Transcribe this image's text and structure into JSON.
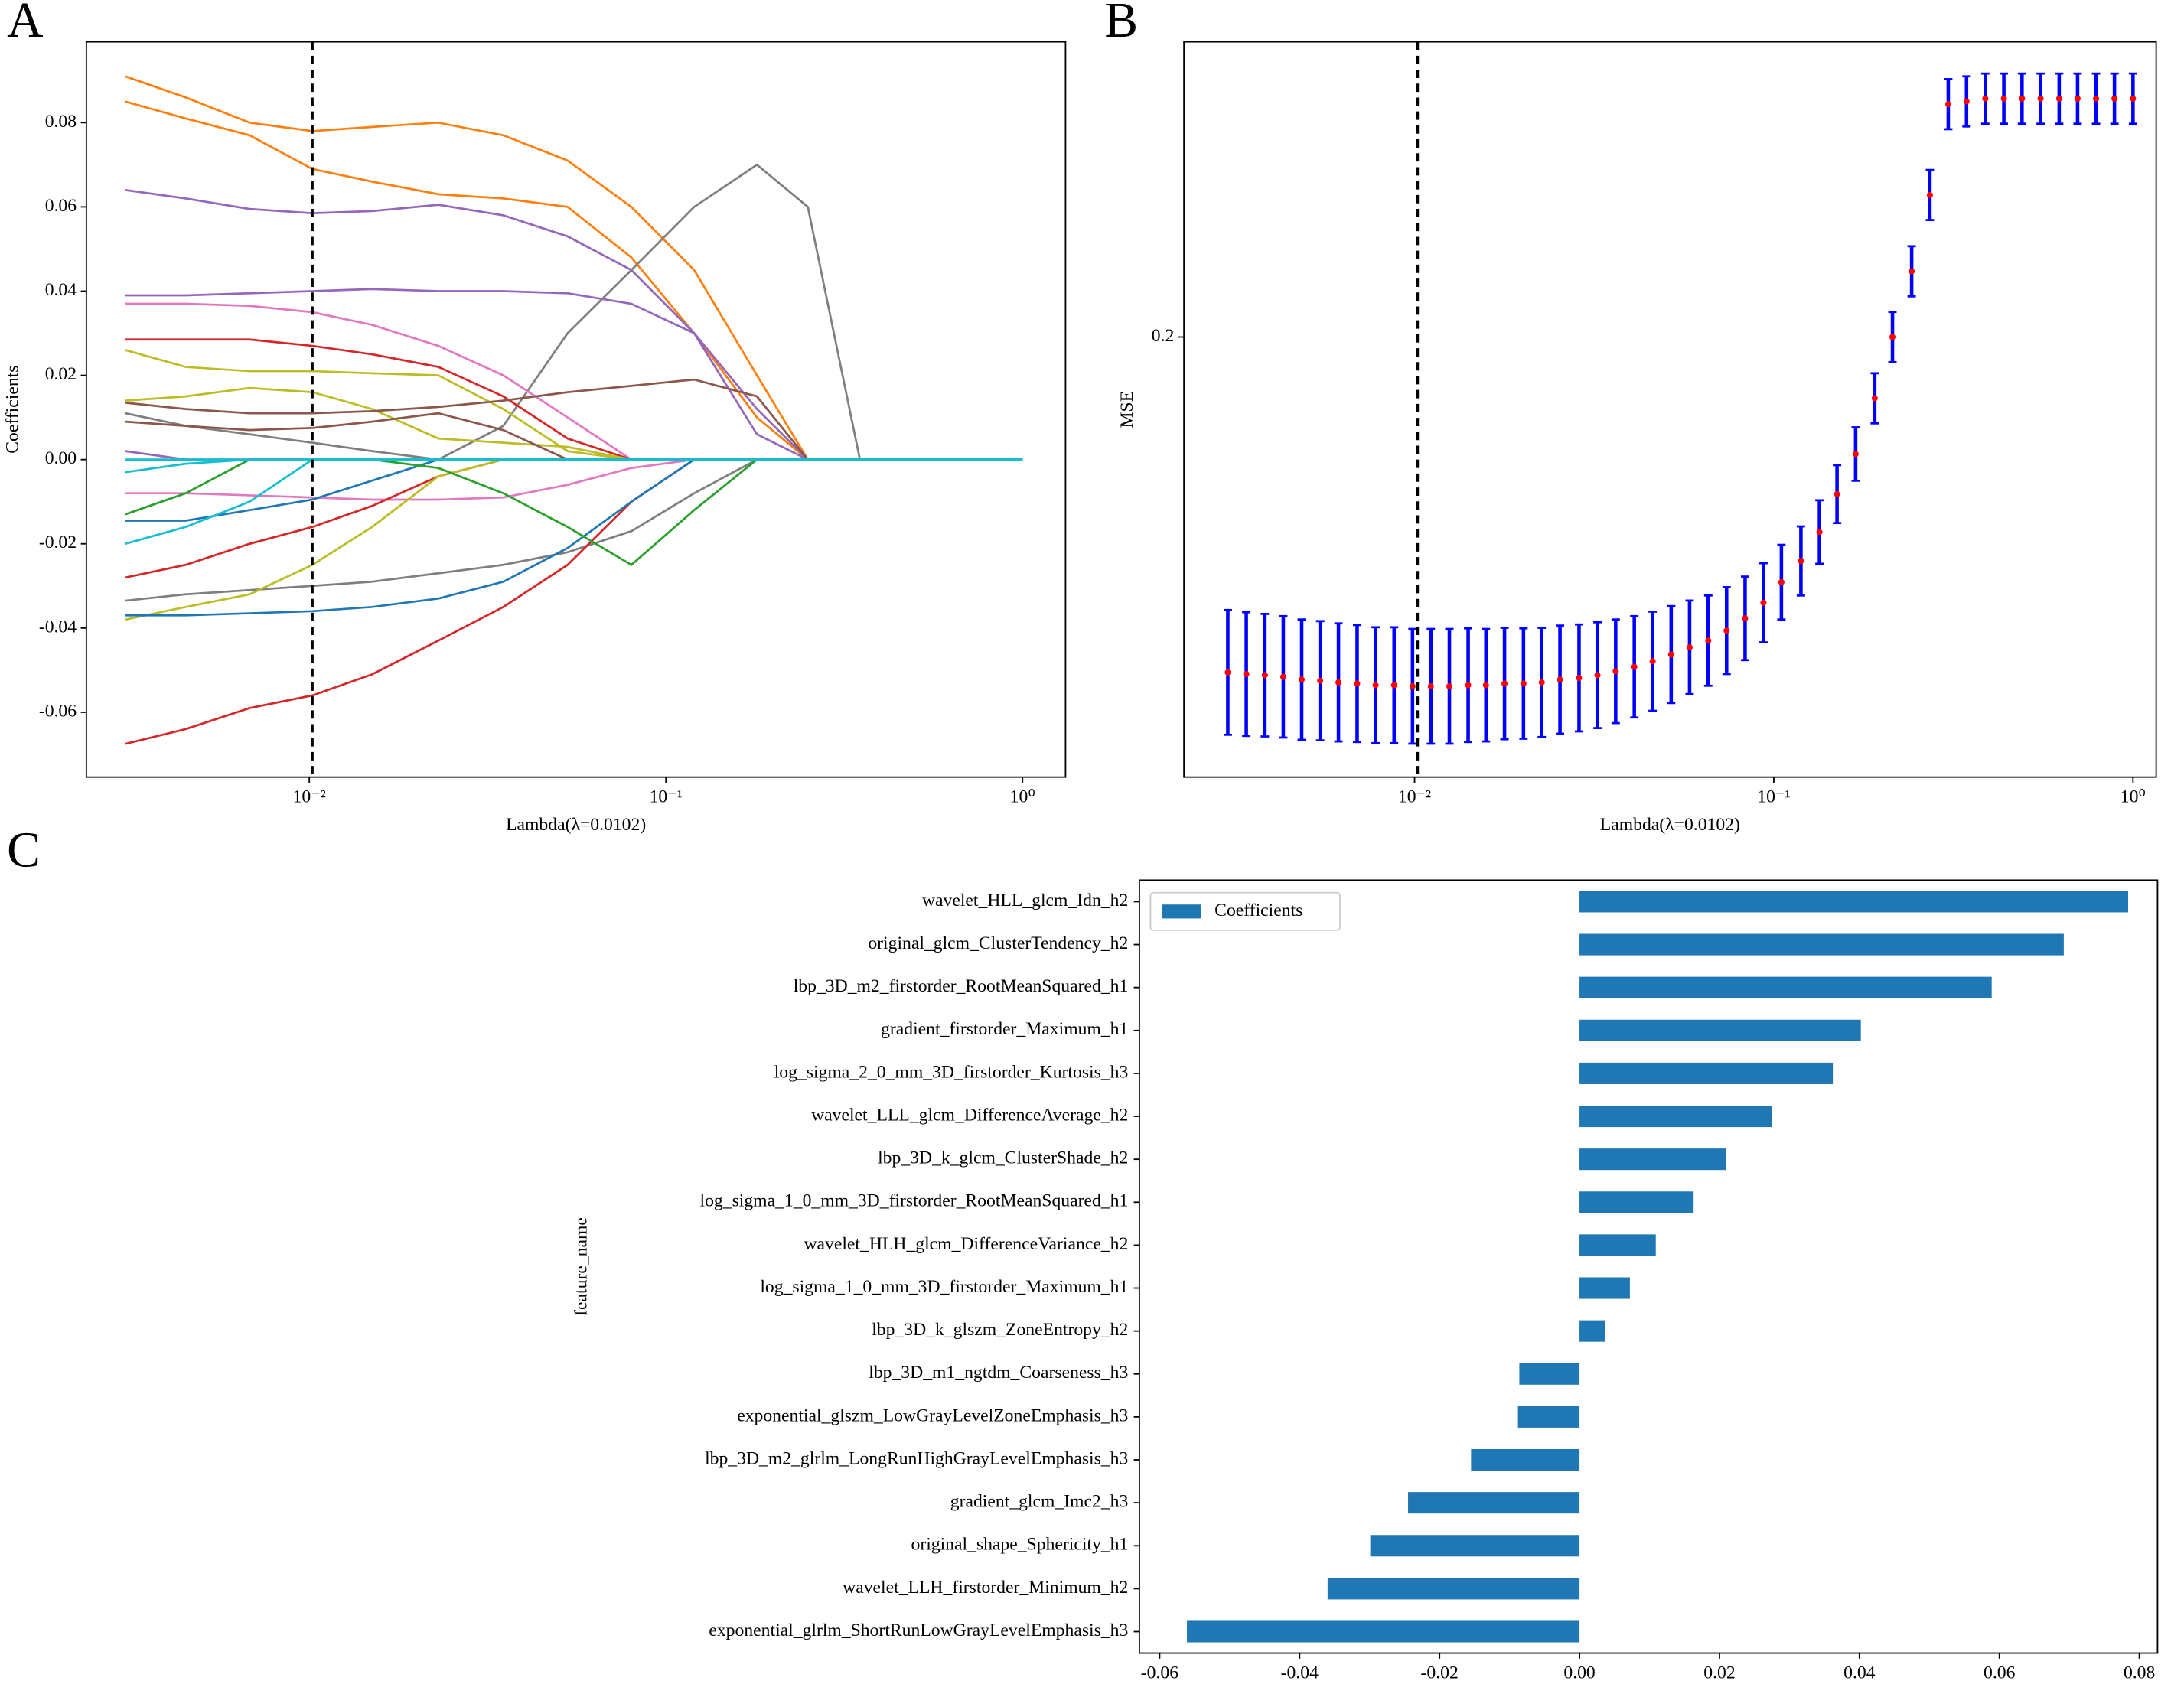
{
  "chart_data": [
    {
      "type": "line",
      "panel_label": "A",
      "xlabel": "Lambda(λ=0.0102)",
      "ylabel": "Coefficients",
      "xscale": "log",
      "xlim": [
        0.00237,
        1.32
      ],
      "ylim": [
        -0.0754,
        0.0992
      ],
      "xticks": [
        {
          "value": 0.01,
          "label": "10⁻²"
        },
        {
          "value": 0.1,
          "label": "10⁻¹"
        },
        {
          "value": 1,
          "label": "10⁰"
        }
      ],
      "yticks": [
        -0.06,
        -0.04,
        -0.02,
        {
          "value": 0,
          "label": "0.00"
        },
        0.02,
        0.04,
        0.06,
        0.08
      ],
      "vline": 0.0102,
      "x": [
        0.00305,
        0.0045,
        0.0068,
        0.0102,
        0.015,
        0.023,
        0.035,
        0.053,
        0.08,
        0.12,
        0.18,
        0.25,
        0.35,
        0.5,
        0.7,
        1.0
      ],
      "series": [
        {
          "color": "#ff7f0e",
          "values": [
            0.091,
            0.086,
            0.08,
            0.078,
            0.079,
            0.08,
            0.077,
            0.071,
            0.06,
            0.045,
            0.02,
            0,
            0,
            0,
            0,
            0
          ]
        },
        {
          "color": "#ff7f0e",
          "values": [
            0.085,
            0.081,
            0.077,
            0.069,
            0.066,
            0.063,
            0.062,
            0.06,
            0.048,
            0.03,
            0.01,
            0,
            0,
            0,
            0,
            0
          ]
        },
        {
          "color": "#9467bd",
          "values": [
            0.064,
            0.062,
            0.0595,
            0.0585,
            0.059,
            0.0605,
            0.058,
            0.053,
            0.045,
            0.03,
            0.006,
            0,
            0,
            0,
            0,
            0
          ]
        },
        {
          "color": "#9467bd",
          "values": [
            0.039,
            0.039,
            0.0395,
            0.04,
            0.0405,
            0.04,
            0.04,
            0.0395,
            0.037,
            0.03,
            0.012,
            0,
            0,
            0,
            0,
            0
          ]
        },
        {
          "color": "#7f7f7f",
          "values": [
            0.011,
            0.008,
            0.006,
            0.004,
            0.002,
            0,
            0.008,
            0.03,
            0.045,
            0.06,
            0.07,
            0.06,
            0,
            0,
            0,
            0
          ]
        },
        {
          "color": "#7f7f7f",
          "values": [
            -0.0335,
            -0.032,
            -0.031,
            -0.03,
            -0.029,
            -0.027,
            -0.025,
            -0.022,
            -0.017,
            -0.008,
            0,
            0,
            0,
            0,
            0,
            0
          ]
        },
        {
          "color": "#e377c2",
          "values": [
            0.037,
            0.037,
            0.0365,
            0.035,
            0.032,
            0.027,
            0.02,
            0.01,
            0,
            0,
            0,
            0,
            0,
            0,
            0,
            0
          ]
        },
        {
          "color": "#e377c2",
          "values": [
            -0.008,
            -0.008,
            -0.0085,
            -0.009,
            -0.0095,
            -0.0095,
            -0.009,
            -0.006,
            -0.002,
            0,
            0,
            0,
            0,
            0,
            0,
            0
          ]
        },
        {
          "color": "#d62728",
          "values": [
            0.0285,
            0.0285,
            0.0285,
            0.027,
            0.025,
            0.022,
            0.015,
            0.005,
            0,
            0,
            0,
            0,
            0,
            0,
            0,
            0
          ]
        },
        {
          "color": "#d62728",
          "values": [
            -0.028,
            -0.025,
            -0.02,
            -0.016,
            -0.011,
            -0.004,
            0,
            0,
            0,
            0,
            0,
            0,
            0,
            0,
            0,
            0
          ]
        },
        {
          "color": "#d62728",
          "values": [
            -0.0675,
            -0.064,
            -0.059,
            -0.056,
            -0.051,
            -0.043,
            -0.035,
            -0.025,
            -0.01,
            0,
            0,
            0,
            0,
            0,
            0,
            0
          ]
        },
        {
          "color": "#bcbd22",
          "values": [
            0.026,
            0.022,
            0.021,
            0.021,
            0.0205,
            0.02,
            0.012,
            0.002,
            0,
            0,
            0,
            0,
            0,
            0,
            0,
            0
          ]
        },
        {
          "color": "#bcbd22",
          "values": [
            0.014,
            0.015,
            0.017,
            0.016,
            0.012,
            0.005,
            0.004,
            0.003,
            0,
            0,
            0,
            0,
            0,
            0,
            0,
            0
          ]
        },
        {
          "color": "#bcbd22",
          "values": [
            -0.038,
            -0.035,
            -0.032,
            -0.025,
            -0.016,
            -0.004,
            0,
            0,
            0,
            0,
            0,
            0,
            0,
            0,
            0,
            0
          ]
        },
        {
          "color": "#8c564b",
          "values": [
            0.0135,
            0.012,
            0.011,
            0.011,
            0.0115,
            0.0125,
            0.014,
            0.016,
            0.0175,
            0.019,
            0.015,
            0,
            0,
            0,
            0,
            0
          ]
        },
        {
          "color": "#8c564b",
          "values": [
            0.009,
            0.008,
            0.007,
            0.0075,
            0.009,
            0.011,
            0.007,
            0,
            0,
            0,
            0,
            0,
            0,
            0,
            0,
            0
          ]
        },
        {
          "color": "#1f77b4",
          "values": [
            -0.037,
            -0.037,
            -0.0365,
            -0.036,
            -0.035,
            -0.033,
            -0.029,
            -0.021,
            -0.01,
            0,
            0,
            0,
            0,
            0,
            0,
            0
          ]
        },
        {
          "color": "#1f77b4",
          "values": [
            -0.0145,
            -0.0145,
            -0.012,
            -0.0095,
            -0.005,
            0,
            0,
            0,
            0,
            0,
            0,
            0,
            0,
            0,
            0,
            0
          ]
        },
        {
          "color": "#2ca02c",
          "values": [
            -0.013,
            -0.008,
            0,
            0,
            0,
            -0.002,
            -0.008,
            -0.016,
            -0.025,
            -0.012,
            0,
            0,
            0,
            0,
            0,
            0
          ]
        },
        {
          "color": "#9467bd",
          "values": [
            0.002,
            0,
            0,
            0,
            0,
            0,
            0,
            0,
            0,
            0,
            0,
            0,
            0,
            0,
            0,
            0
          ]
        },
        {
          "color": "#17becf",
          "values": [
            -0.02,
            -0.016,
            -0.01,
            0,
            0,
            0,
            0,
            0,
            0,
            0,
            0,
            0,
            0,
            0,
            0,
            0
          ]
        },
        {
          "color": "#17becf",
          "values": [
            -0.003,
            -0.001,
            0,
            0,
            0,
            0,
            0,
            0,
            0,
            0,
            0,
            0,
            0,
            0,
            0,
            0
          ]
        },
        {
          "color": "#17becf",
          "values": [
            0,
            0,
            0,
            0,
            0,
            0,
            0,
            0,
            0,
            0,
            0,
            0,
            0,
            0,
            0,
            0
          ]
        }
      ]
    },
    {
      "type": "errorbar",
      "panel_label": "B",
      "xlabel": "Lambda(λ=0.0102)",
      "ylabel": "MSE",
      "xscale": "log",
      "xlim": [
        0.00228,
        1.16
      ],
      "ylim": [
        0.121,
        0.253
      ],
      "xticks": [
        {
          "value": 0.01,
          "label": "10⁻²"
        },
        {
          "value": 0.1,
          "label": "10⁻¹"
        },
        {
          "value": 1,
          "label": "10⁰"
        }
      ],
      "yticks": [
        0.2
      ],
      "vline": 0.0102,
      "color": "#ff0000",
      "ecolor": "#0000ff",
      "x": [
        0.00302,
        0.0034,
        0.00383,
        0.00431,
        0.00485,
        0.00546,
        0.00614,
        0.00692,
        0.00779,
        0.00877,
        0.00987,
        0.0111,
        0.0125,
        0.0141,
        0.0158,
        0.0178,
        0.0201,
        0.0226,
        0.0254,
        0.0287,
        0.0323,
        0.0363,
        0.0409,
        0.046,
        0.0518,
        0.0583,
        0.0657,
        0.0739,
        0.0832,
        0.0936,
        0.105,
        0.119,
        0.134,
        0.15,
        0.169,
        0.191,
        0.214,
        0.242,
        0.272,
        0.306,
        0.344,
        0.388,
        0.437,
        0.491,
        0.553,
        0.623,
        0.701,
        0.789,
        0.888,
        1.0
      ],
      "values": [
        0.1398,
        0.1395,
        0.1393,
        0.139,
        0.1385,
        0.1383,
        0.138,
        0.1378,
        0.1375,
        0.1375,
        0.1373,
        0.1373,
        0.1373,
        0.1375,
        0.1375,
        0.1378,
        0.1378,
        0.138,
        0.1385,
        0.1388,
        0.1393,
        0.14,
        0.1408,
        0.1418,
        0.143,
        0.1443,
        0.1455,
        0.1473,
        0.1495,
        0.1523,
        0.156,
        0.1598,
        0.165,
        0.1718,
        0.179,
        0.189,
        0.2,
        0.2118,
        0.2255,
        0.2418,
        0.2423,
        0.2428,
        0.2428,
        0.2428,
        0.2428,
        0.2428,
        0.2428,
        0.2428,
        0.2428,
        0.2428
      ],
      "errors": [
        0.0112,
        0.0111,
        0.011,
        0.0109,
        0.0108,
        0.0107,
        0.0106,
        0.0105,
        0.0104,
        0.0104,
        0.0103,
        0.0103,
        0.0103,
        0.0102,
        0.0101,
        0.01,
        0.0099,
        0.0098,
        0.0097,
        0.0096,
        0.0095,
        0.0093,
        0.0091,
        0.0089,
        0.0087,
        0.0084,
        0.0081,
        0.0078,
        0.0075,
        0.0071,
        0.0067,
        0.0062,
        0.0057,
        0.0052,
        0.0048,
        0.0045,
        0.0045,
        0.0045,
        0.0045,
        0.0045,
        0.0045,
        0.0045,
        0.0045,
        0.0045,
        0.0045,
        0.0045,
        0.0045,
        0.0045,
        0.0045,
        0.0045
      ]
    },
    {
      "type": "barh",
      "panel_label": "C",
      "ylabel": "feature_name",
      "legend": "upper left",
      "xlim": [
        -0.0629,
        0.0826
      ],
      "xticks": [
        -0.06,
        -0.04,
        -0.02,
        {
          "value": 0,
          "label": "0.00"
        },
        0.02,
        0.04,
        0.06,
        0.08
      ],
      "categories": [
        "wavelet_HLL_glcm_Idn_h2",
        "original_glcm_ClusterTendency_h2",
        "lbp_3D_m2_firstorder_RootMeanSquared_h1",
        "gradient_firstorder_Maximum_h1",
        "log_sigma_2_0_mm_3D_firstorder_Kurtosis_h3",
        "wavelet_LLL_glcm_DifferenceAverage_h2",
        "lbp_3D_k_glcm_ClusterShade_h2",
        "log_sigma_1_0_mm_3D_firstorder_RootMeanSquared_h1",
        "wavelet_HLH_glcm_DifferenceVariance_h2",
        "log_sigma_1_0_mm_3D_firstorder_Maximum_h1",
        "lbp_3D_k_glszm_ZoneEntropy_h2",
        "lbp_3D_m1_ngtdm_Coarseness_h3",
        "exponential_glszm_LowGrayLevelZoneEmphasis_h3",
        "lbp_3D_m2_glrlm_LongRunHighGrayLevelEmphasis_h3",
        "gradient_glcm_Imc2_h3",
        "original_shape_Sphericity_h1",
        "wavelet_LLH_firstorder_Minimum_h2",
        "exponential_glrlm_ShortRunLowGrayLevelEmphasis_h3"
      ],
      "series": [
        {
          "name": "Coefficients",
          "color": "#1f77b4",
          "values": [
            0.0784,
            0.0692,
            0.0589,
            0.0402,
            0.0362,
            0.0275,
            0.0209,
            0.0163,
            0.0109,
            0.0072,
            0.0036,
            -0.0086,
            -0.0088,
            -0.0155,
            -0.0245,
            -0.0299,
            -0.036,
            -0.0561
          ]
        }
      ]
    }
  ]
}
